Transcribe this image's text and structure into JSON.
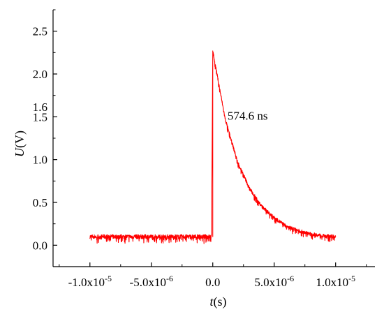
{
  "chart_data": {
    "type": "line",
    "title": "",
    "xlabel": {
      "italic": "t",
      "rest": "(s)"
    },
    "ylabel": {
      "italic": "U",
      "rest": "(V)"
    },
    "xlim": [
      -1.3e-05,
      1.32e-05
    ],
    "ylim": [
      -0.25,
      2.75
    ],
    "x_ticks": [
      {
        "value": -1e-05,
        "mantissa": "-1.0x10",
        "exponent": "-5"
      },
      {
        "value": -5e-06,
        "mantissa": "-5.0x10",
        "exponent": "-6"
      },
      {
        "value": 0,
        "mantissa": "0.0",
        "exponent": ""
      },
      {
        "value": 5e-06,
        "mantissa": "5.0x10",
        "exponent": "-6"
      },
      {
        "value": 1e-05,
        "mantissa": "1.0x10",
        "exponent": "-5"
      }
    ],
    "y_ticks": [
      {
        "value": 0.0,
        "label": "0.0"
      },
      {
        "value": 0.5,
        "label": "0.5"
      },
      {
        "value": 1.0,
        "label": "1.0"
      },
      {
        "value": 1.5,
        "label": "1.5"
      },
      {
        "value": 2.0,
        "label": "2.0"
      },
      {
        "value": 2.5,
        "label": "2.5"
      }
    ],
    "extra_y_label": {
      "value": 1.6,
      "label": "1.6"
    },
    "annotation": {
      "text": "574.6 ns",
      "x": 1.2e-06,
      "y": 1.5
    },
    "grid": false,
    "series": [
      {
        "color": "#ff0000",
        "x": [
          -1e-05,
          -5e-06,
          -1e-07,
          0,
          1e-06,
          2e-06,
          3e-06,
          4e-06,
          5e-06,
          6e-06,
          7e-06,
          8e-06,
          9e-06,
          1e-05
        ],
        "y": [
          0.1,
          0.1,
          0.1,
          2.27,
          1.48,
          0.98,
          0.66,
          0.45,
          0.32,
          0.22,
          0.17,
          0.13,
          0.11,
          0.1
        ]
      }
    ]
  }
}
